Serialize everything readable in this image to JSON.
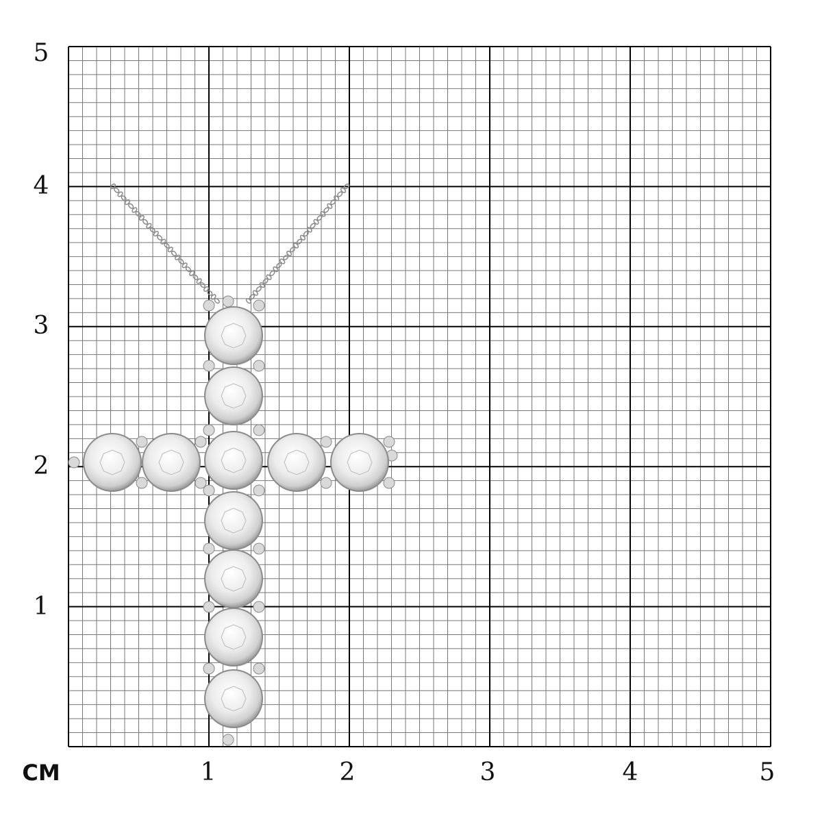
{
  "scale": {
    "unit_label": "CM",
    "x_ticks": [
      "1",
      "2",
      "3",
      "4",
      "5"
    ],
    "y_ticks": [
      "5",
      "4",
      "3",
      "2",
      "1"
    ]
  },
  "product": {
    "icon": "diamond-cross-pendant",
    "metal_color": "#d9d9d9",
    "grid_color": "#000000"
  }
}
